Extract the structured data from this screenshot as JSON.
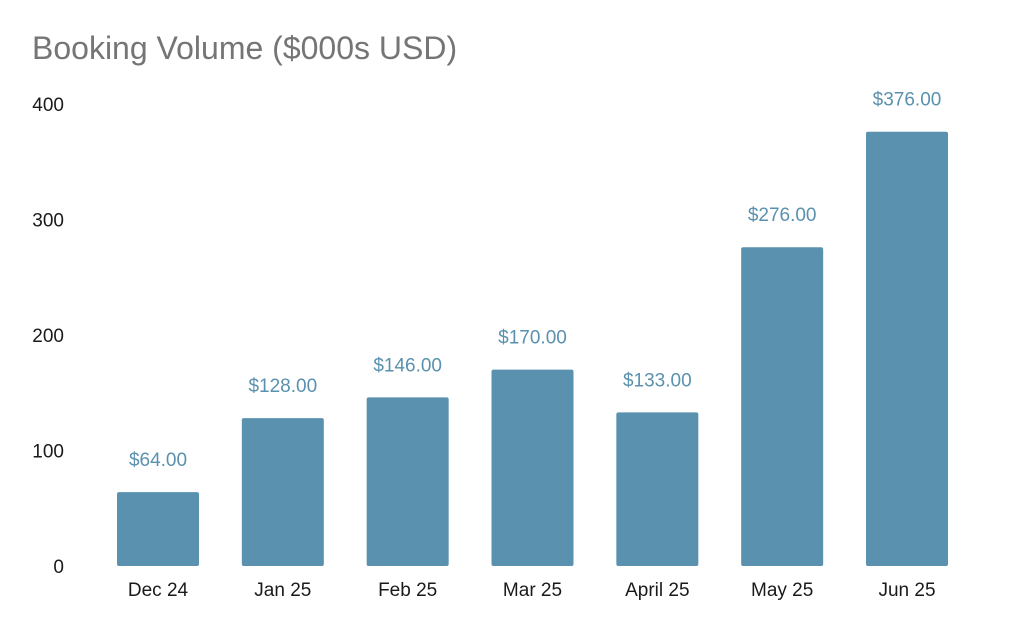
{
  "chart_data": {
    "type": "bar",
    "title": "Booking Volume ($000s USD)",
    "xlabel": "",
    "ylabel": "",
    "categories": [
      "Dec 24",
      "Jan 25",
      "Feb 25",
      "Mar 25",
      "April 25",
      "May 25",
      "Jun 25"
    ],
    "values": [
      64,
      128,
      146,
      170,
      133,
      276,
      376
    ],
    "data_labels": [
      "$64.00",
      "$128.00",
      "$146.00",
      "$170.00",
      "$133.00",
      "$276.00",
      "$376.00"
    ],
    "ylim": [
      0,
      400
    ],
    "yticks": [
      "0",
      "100",
      "200",
      "300",
      "400"
    ],
    "grid": false,
    "legend": "none",
    "colors": {
      "bar": "#5a91ae",
      "data_label": "#5a91ae",
      "title": "#757575",
      "tick": "#1a1a1a"
    }
  }
}
